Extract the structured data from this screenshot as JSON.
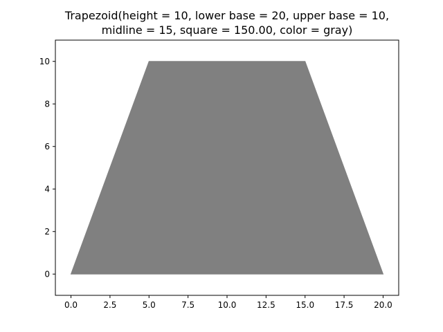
{
  "chart_data": {
    "type": "area",
    "title_lines": [
      "Trapezoid(height = 10, lower base = 20, upper base = 10,",
      "midline = 15, square = 150.00, color = gray)"
    ],
    "xlabel": "",
    "ylabel": "",
    "xlim": [
      -1.0,
      21.0
    ],
    "ylim": [
      -1.0,
      11.0
    ],
    "x_ticks": [
      0.0,
      2.5,
      5.0,
      7.5,
      10.0,
      12.5,
      15.0,
      17.5,
      20.0
    ],
    "x_tick_labels": [
      "0.0",
      "2.5",
      "5.0",
      "7.5",
      "10.0",
      "12.5",
      "15.0",
      "17.5",
      "20.0"
    ],
    "y_ticks": [
      0,
      2,
      4,
      6,
      8,
      10
    ],
    "y_tick_labels": [
      "0",
      "2",
      "4",
      "6",
      "8",
      "10"
    ],
    "grid": false,
    "series": [
      {
        "shape": "trapezoid",
        "color": "#808080",
        "points": [
          [
            0,
            0
          ],
          [
            20,
            0
          ],
          [
            15,
            10
          ],
          [
            5,
            10
          ]
        ]
      }
    ]
  }
}
